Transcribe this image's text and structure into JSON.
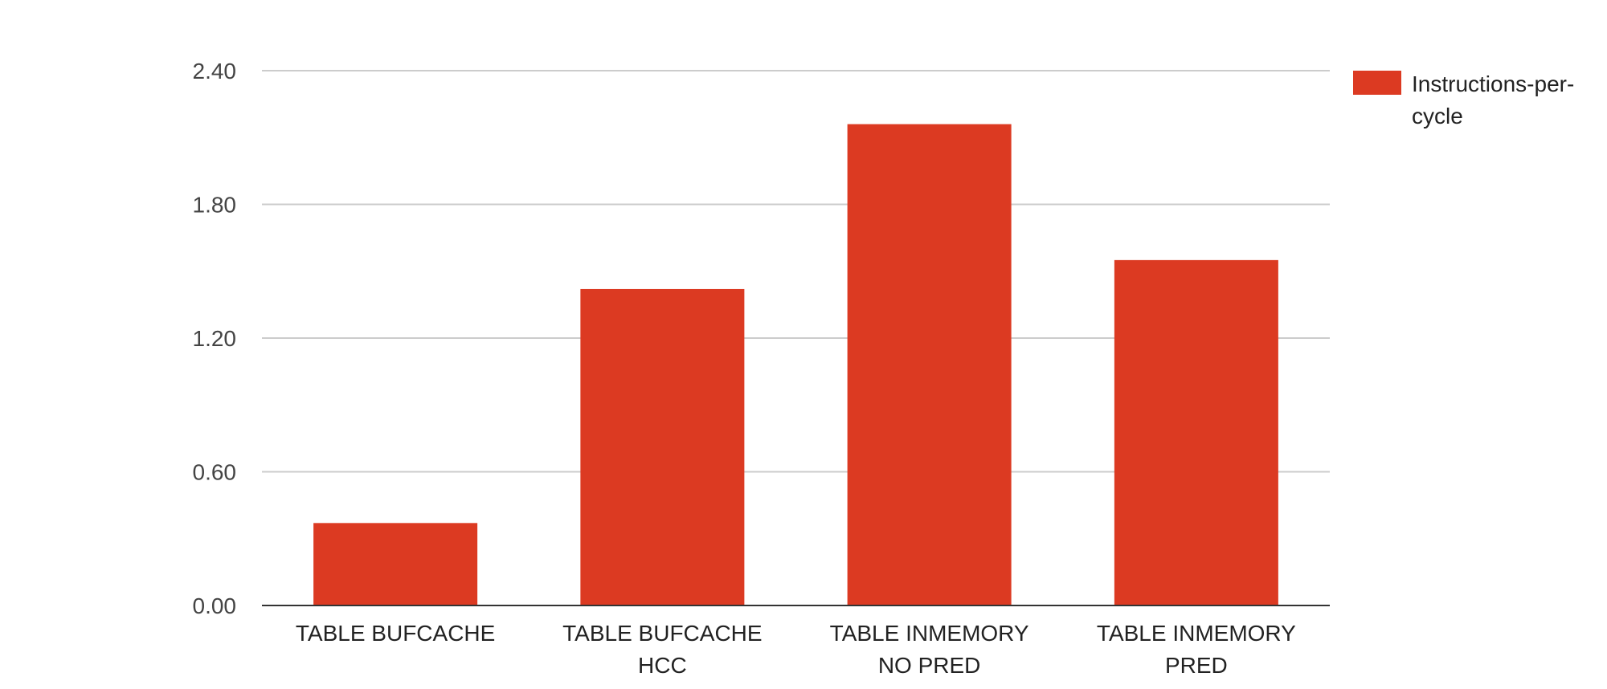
{
  "chart_data": {
    "type": "bar",
    "title": "",
    "xlabel": "",
    "ylabel": "",
    "categories": [
      [
        "TABLE BUFCACHE"
      ],
      [
        "TABLE BUFCACHE",
        "HCC"
      ],
      [
        "TABLE INMEMORY",
        "NO PRED"
      ],
      [
        "TABLE INMEMORY",
        "PRED"
      ]
    ],
    "series": [
      {
        "name": "Instructions-per-cycle",
        "values": [
          0.37,
          1.42,
          2.16,
          1.55
        ],
        "color": "#dc3a22"
      }
    ],
    "ylim": [
      0,
      2.4
    ],
    "yticks": [
      0.0,
      0.6,
      1.2,
      1.8,
      2.4
    ],
    "ytick_labels": [
      "0.00",
      "0.60",
      "1.20",
      "1.80",
      "2.40"
    ],
    "grid": true,
    "legend": {
      "position": "top-right",
      "lines": [
        "Instructions-per-",
        "cycle"
      ]
    }
  }
}
